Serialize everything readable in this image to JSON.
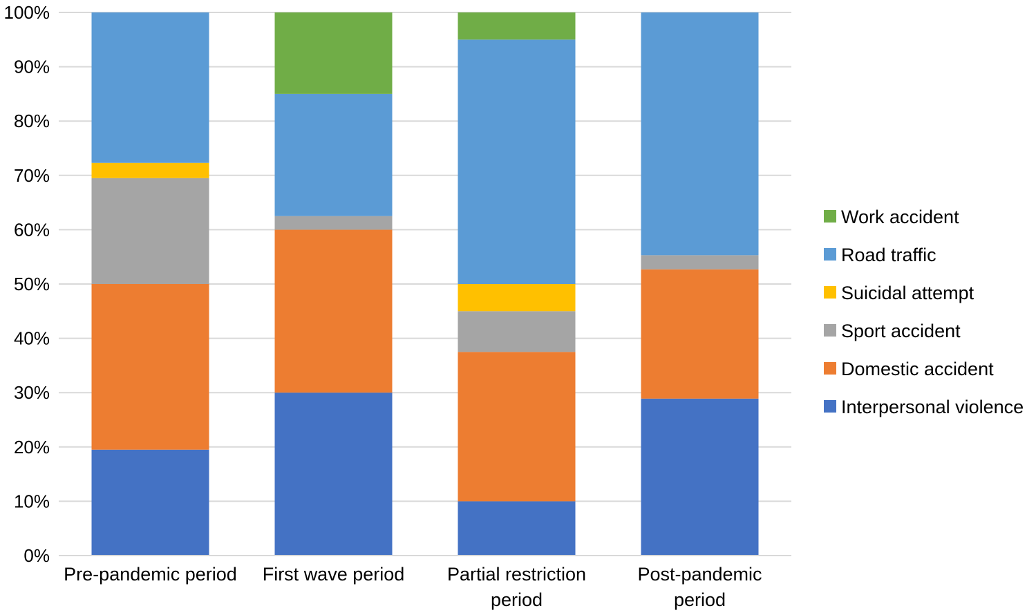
{
  "chart_data": {
    "type": "bar",
    "stacked": true,
    "percent": true,
    "categories": [
      [
        "Pre-pandemic period"
      ],
      [
        "First wave period"
      ],
      [
        "Partial restriction",
        "period"
      ],
      [
        "Post-pandemic",
        "period"
      ]
    ],
    "series": [
      {
        "name": "Interpersonal violence",
        "color": "#4472C4",
        "values": [
          19.5,
          30,
          10,
          28.9
        ]
      },
      {
        "name": "Domestic accident",
        "color": "#ED7D31",
        "values": [
          30.5,
          30,
          27.5,
          23.8
        ]
      },
      {
        "name": "Sport accident",
        "color": "#A5A5A5",
        "values": [
          19.5,
          2.5,
          7.5,
          2.6
        ]
      },
      {
        "name": "Suicidal attempt",
        "color": "#FFC000",
        "values": [
          2.8,
          0,
          5,
          0
        ]
      },
      {
        "name": "Road traffic",
        "color": "#5B9BD5",
        "values": [
          27.7,
          22.5,
          45,
          44.7
        ]
      },
      {
        "name": "Work accident",
        "color": "#70AD47",
        "values": [
          0,
          15,
          5,
          0
        ]
      }
    ],
    "ylim": [
      0,
      100
    ],
    "yticks": [
      "0%",
      "10%",
      "20%",
      "30%",
      "40%",
      "50%",
      "60%",
      "70%",
      "80%",
      "90%",
      "100%"
    ],
    "grid": true,
    "legend_position": "right",
    "legend_order": [
      "Work accident",
      "Road traffic",
      "Suicidal attempt",
      "Sport accident",
      "Domestic accident",
      "Interpersonal violence"
    ],
    "title": "",
    "xlabel": "",
    "ylabel": ""
  }
}
